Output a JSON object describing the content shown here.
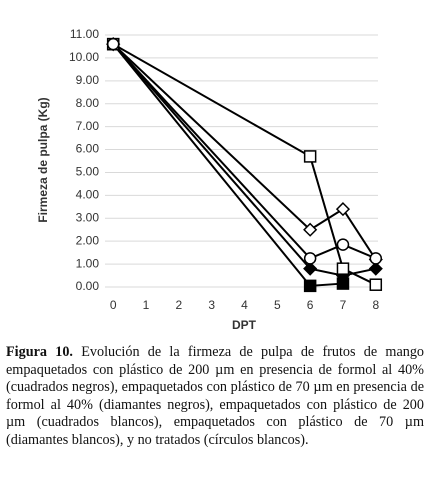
{
  "chart_data": {
    "type": "line",
    "y_label": "Firmeza de pulpa (Kg)",
    "x_label": "DPT",
    "x": [
      0,
      6,
      7,
      8
    ],
    "series": [
      {
        "marker": "square",
        "color": "#000000",
        "values": [
          10.6,
          0.05,
          0.15,
          null
        ]
      },
      {
        "marker": "diamond",
        "color": "#000000",
        "values": [
          10.6,
          0.8,
          0.5,
          0.8
        ]
      },
      {
        "marker": "square",
        "color": "#ffffff",
        "values": [
          10.6,
          5.7,
          0.8,
          0.1
        ]
      },
      {
        "marker": "diamond",
        "color": "#ffffff",
        "values": [
          10.6,
          2.5,
          3.4,
          1.2
        ]
      },
      {
        "marker": "circle",
        "color": "#ffffff",
        "values": [
          10.6,
          1.25,
          1.85,
          1.25
        ]
      }
    ],
    "xlim": [
      -0.25,
      8.25
    ],
    "xticks": [
      0,
      1,
      2,
      3,
      4,
      5,
      6,
      7,
      8
    ],
    "ylim": [
      0,
      11
    ],
    "yticks": [
      {
        "value": 0,
        "label": "0.00"
      },
      {
        "value": 1,
        "label": "1.00"
      },
      {
        "value": 2,
        "label": "2.00"
      },
      {
        "value": 3,
        "label": "3.00"
      },
      {
        "value": 4,
        "label": "4.00"
      },
      {
        "value": 5,
        "label": "5.00"
      },
      {
        "value": 6,
        "label": "6.00"
      },
      {
        "value": 7,
        "label": "7.00"
      },
      {
        "value": 8,
        "label": "8.00"
      },
      {
        "value": 9,
        "label": "9.00"
      },
      {
        "value": 10,
        "label": "10.00"
      },
      {
        "value": 11,
        "label": "11.00"
      }
    ],
    "grid": true
  },
  "caption": {
    "label": "Figura 10.",
    "text": "Evolución de la firmeza de pulpa de frutos de mango empaquetados con plástico de 200 µm en presencia de formol al 40% (cuadrados negros), empaquetados con plástico de 70 µm en presencia de formol al 40% (diamantes negros), empaquetados con plástico de 200 µm (cuadrados blancos), empaquetados con plástico de 70 µm (diamantes blancos), y no tratados (círculos blancos)."
  }
}
